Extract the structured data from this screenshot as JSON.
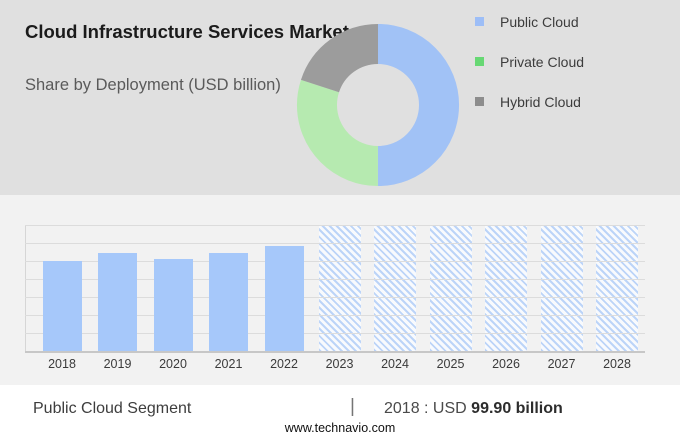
{
  "header": {
    "title": "Cloud Infrastructure Services Market",
    "subtitle": "Share by Deployment (USD billion)",
    "background_color": "#e0e0e0"
  },
  "legend": {
    "items": [
      {
        "label": "Public Cloud",
        "color": "#9dbef7"
      },
      {
        "label": "Private Cloud",
        "color": "#67d874"
      },
      {
        "label": "Hybrid Cloud",
        "color": "#8d8d8d"
      }
    ]
  },
  "chart_data": [
    {
      "type": "pie",
      "subtype": "donut",
      "title": "Share by Deployment (USD billion)",
      "start_angle_deg": 0,
      "direction": "clockwise",
      "segments": [
        {
          "label": "Public Cloud",
          "share_pct": 50,
          "color": "#a1c2f6"
        },
        {
          "label": "Private Cloud",
          "share_pct": 30,
          "color": "#b6eab0"
        },
        {
          "label": "Hybrid Cloud",
          "share_pct": 20,
          "color": "#9c9c9c"
        }
      ],
      "note": "shares estimated from arc angles"
    },
    {
      "type": "bar",
      "title": "Public Cloud Segment (USD billion)",
      "categories": [
        "2018",
        "2019",
        "2020",
        "2021",
        "2022",
        "2023",
        "2024",
        "2025",
        "2026",
        "2027",
        "2028"
      ],
      "values": [
        99.9,
        108.5,
        102.3,
        109.0,
        117.2,
        null,
        null,
        null,
        null,
        null,
        null
      ],
      "labeled_value": {
        "year": "2018",
        "text": "USD 99.90 billion"
      },
      "forecast_years_hatched": [
        "2023",
        "2024",
        "2025",
        "2026",
        "2027",
        "2028"
      ],
      "ylim": [
        0,
        140
      ],
      "gridline_step": 20,
      "grid": true,
      "bar_color": "#a6c8fa",
      "hatch_stripe_color": "#bcd4f8",
      "hatch_base_color": "#f8fafd",
      "note": "2019-2022 values estimated from gridlines; 2023-2028 forecast drawn as full-height hatched columns with no printed values"
    }
  ],
  "footer": {
    "segment_label": "Public Cloud Segment",
    "divider": "|",
    "value_prefix": "2018 : USD",
    "value_bold": "99.90 billion",
    "website": "www.technavio.com"
  }
}
